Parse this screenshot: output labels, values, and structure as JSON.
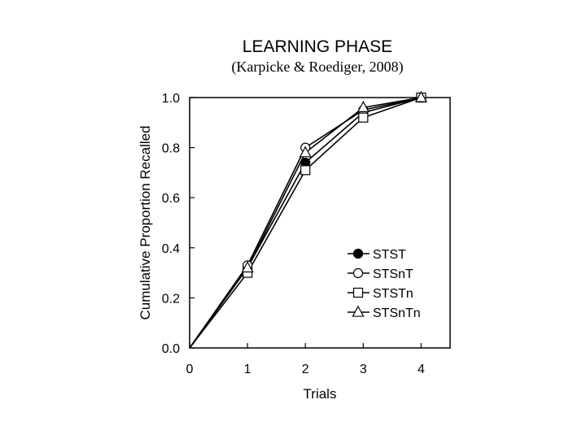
{
  "chart_data": {
    "type": "line",
    "title": "LEARNING PHASE",
    "subtitle": "(Karpicke & Roediger, 2008)",
    "xlabel": "Trials",
    "ylabel": "Cumulative Proportion Recalled",
    "x": [
      0,
      1,
      2,
      3,
      4
    ],
    "xlim": [
      0,
      4.5
    ],
    "ylim": [
      0,
      1.0
    ],
    "x_ticks": [
      "0",
      "1",
      "2",
      "3",
      "4"
    ],
    "y_ticks": [
      "0.0",
      "0.2",
      "0.4",
      "0.6",
      "0.8",
      "1.0"
    ],
    "grid": false,
    "legend_position": "bottom-right",
    "series": [
      {
        "name": "STST",
        "marker": "filled-circle",
        "values": [
          0,
          0.32,
          0.74,
          0.94,
          1.0
        ]
      },
      {
        "name": "STSnT",
        "marker": "open-circle",
        "values": [
          0,
          0.33,
          0.8,
          0.95,
          1.0
        ]
      },
      {
        "name": "STSTn",
        "marker": "open-square",
        "values": [
          0,
          0.3,
          0.71,
          0.92,
          1.0
        ]
      },
      {
        "name": "STSnTn",
        "marker": "open-triangle",
        "values": [
          0,
          0.32,
          0.78,
          0.96,
          1.0
        ]
      }
    ]
  }
}
